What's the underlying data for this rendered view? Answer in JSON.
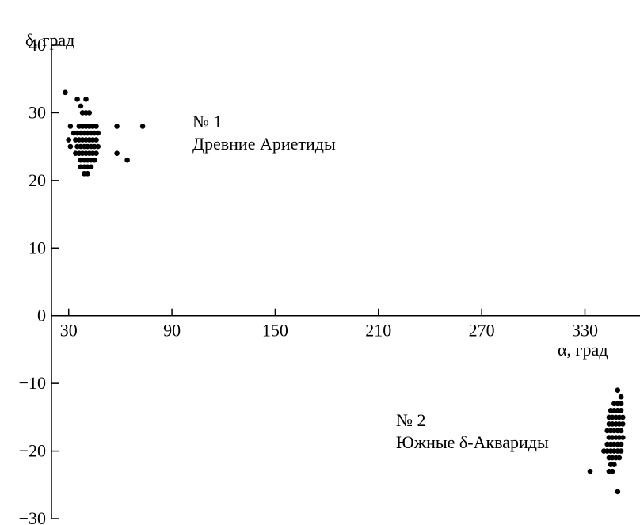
{
  "chart_data": {
    "type": "scatter",
    "ylabel": "δ, град",
    "xlabel": "α, град",
    "xlim": [
      20,
      362
    ],
    "ylim": [
      -30,
      40
    ],
    "x_ticks": [
      30,
      90,
      150,
      210,
      270,
      330
    ],
    "y_ticks": [
      40,
      30,
      20,
      10,
      0,
      -10,
      -20,
      -30
    ],
    "x_tick_labels": [
      "30",
      "90",
      "150",
      "210",
      "270",
      "330"
    ],
    "y_tick_labels": [
      "40",
      "30",
      "20",
      "10",
      "0",
      "−10",
      "−20",
      "−30"
    ],
    "grid": false,
    "annotations": [
      {
        "number": "№ 1",
        "name": "Древние Ариетиды",
        "x": 78,
        "y": 26
      },
      {
        "number": "№ 2",
        "name": "Южные δ-Аквариды",
        "x": 285,
        "y": -16
      }
    ],
    "series": [
      {
        "points": [
          [
            28,
            33
          ],
          [
            35,
            32
          ],
          [
            40,
            32
          ],
          [
            37,
            31
          ],
          [
            38,
            30
          ],
          [
            40,
            30
          ],
          [
            42,
            30
          ],
          [
            31,
            28
          ],
          [
            36,
            28
          ],
          [
            38,
            28
          ],
          [
            40,
            28
          ],
          [
            42,
            28
          ],
          [
            44,
            28
          ],
          [
            46,
            28
          ],
          [
            58,
            28
          ],
          [
            73,
            28
          ],
          [
            33,
            27
          ],
          [
            35,
            27
          ],
          [
            37,
            27
          ],
          [
            39,
            27
          ],
          [
            41,
            27
          ],
          [
            43,
            27
          ],
          [
            45,
            27
          ],
          [
            47,
            27
          ],
          [
            30,
            26
          ],
          [
            34,
            26
          ],
          [
            36,
            26
          ],
          [
            38,
            26
          ],
          [
            40,
            26
          ],
          [
            42,
            26
          ],
          [
            44,
            26
          ],
          [
            46,
            26
          ],
          [
            31,
            25
          ],
          [
            35,
            25
          ],
          [
            37,
            25
          ],
          [
            39,
            25
          ],
          [
            41,
            25
          ],
          [
            43,
            25
          ],
          [
            45,
            25
          ],
          [
            47,
            25
          ],
          [
            34,
            24
          ],
          [
            36,
            24
          ],
          [
            38,
            24
          ],
          [
            40,
            24
          ],
          [
            42,
            24
          ],
          [
            44,
            24
          ],
          [
            46,
            24
          ],
          [
            58,
            24
          ],
          [
            37,
            23
          ],
          [
            39,
            23
          ],
          [
            41,
            23
          ],
          [
            43,
            23
          ],
          [
            45,
            23
          ],
          [
            64,
            23
          ],
          [
            37,
            22
          ],
          [
            39,
            22
          ],
          [
            41,
            22
          ],
          [
            43,
            22
          ],
          [
            39,
            21
          ],
          [
            41,
            21
          ]
        ]
      },
      {
        "points": [
          [
            349,
            -11
          ],
          [
            351,
            -12
          ],
          [
            347,
            -13
          ],
          [
            349,
            -13
          ],
          [
            351,
            -13
          ],
          [
            345,
            -14
          ],
          [
            347,
            -14
          ],
          [
            349,
            -14
          ],
          [
            351,
            -14
          ],
          [
            344,
            -15
          ],
          [
            346,
            -15
          ],
          [
            348,
            -15
          ],
          [
            350,
            -15
          ],
          [
            352,
            -15
          ],
          [
            344,
            -16
          ],
          [
            346,
            -16
          ],
          [
            348,
            -16
          ],
          [
            350,
            -16
          ],
          [
            352,
            -16
          ],
          [
            343,
            -17
          ],
          [
            345,
            -17
          ],
          [
            347,
            -17
          ],
          [
            349,
            -17
          ],
          [
            351,
            -17
          ],
          [
            344,
            -18
          ],
          [
            346,
            -18
          ],
          [
            348,
            -18
          ],
          [
            350,
            -18
          ],
          [
            352,
            -18
          ],
          [
            343,
            -19
          ],
          [
            345,
            -19
          ],
          [
            347,
            -19
          ],
          [
            349,
            -19
          ],
          [
            351,
            -19
          ],
          [
            341,
            -20
          ],
          [
            343,
            -20
          ],
          [
            345,
            -20
          ],
          [
            347,
            -20
          ],
          [
            349,
            -20
          ],
          [
            351,
            -20
          ],
          [
            344,
            -21
          ],
          [
            346,
            -21
          ],
          [
            348,
            -21
          ],
          [
            350,
            -21
          ],
          [
            345,
            -22
          ],
          [
            347,
            -22
          ],
          [
            344,
            -23
          ],
          [
            346,
            -23
          ],
          [
            333,
            -23
          ],
          [
            349,
            -26
          ]
        ]
      }
    ]
  }
}
